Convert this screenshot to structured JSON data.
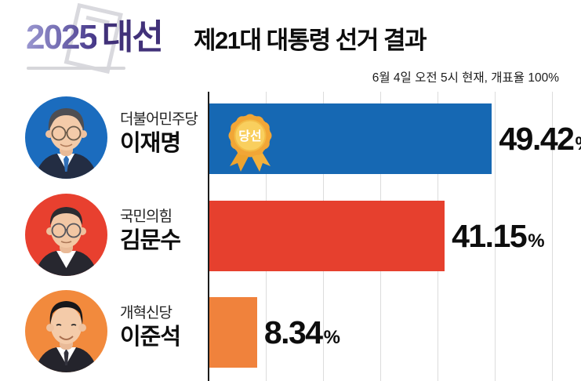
{
  "header": {
    "logo_year": "2025",
    "logo_word": "대선",
    "title": "제21대 대통령 선거 결과",
    "subtitle": "6월 4일 오전 5시 현재, 개표율 100%"
  },
  "chart_data": {
    "type": "bar",
    "orientation": "horizontal",
    "title": "제21대 대통령 선거 결과",
    "subtitle": "6월 4일 오전 5시 현재, 개표율 100%",
    "categories": [
      "이재명",
      "김문수",
      "이준석"
    ],
    "values": [
      49.42,
      41.15,
      8.34
    ],
    "unit": "%",
    "xlim": [
      0,
      65
    ],
    "gridlines": [
      10,
      20,
      30,
      40,
      50,
      60
    ],
    "grid_color": "#dcdcdc",
    "axis_color": "#1b1b1b",
    "winner_badge_label": "당선",
    "candidates": [
      {
        "party": "더불어민주당",
        "name": "이재명",
        "value_label": "49.42",
        "value": 49.42,
        "color": "#1668b3",
        "photo_color": "#1b6cbe",
        "winner": true
      },
      {
        "party": "국민의힘",
        "name": "김문수",
        "value_label": "41.15",
        "value": 41.15,
        "color": "#e6402e",
        "photo_color": "#e8402f",
        "winner": false
      },
      {
        "party": "개혁신당",
        "name": "이준석",
        "value_label": "8.34",
        "value": 8.34,
        "color": "#f0823c",
        "photo_color": "#f28a3d",
        "winner": false
      }
    ]
  },
  "badge_colors": {
    "rosette": "#f1a636",
    "rosette_inner": "#f9cf5e",
    "ribbon_left": "#eda32e",
    "ribbon_right": "#f3b13c",
    "label_color": "#ffffff"
  }
}
